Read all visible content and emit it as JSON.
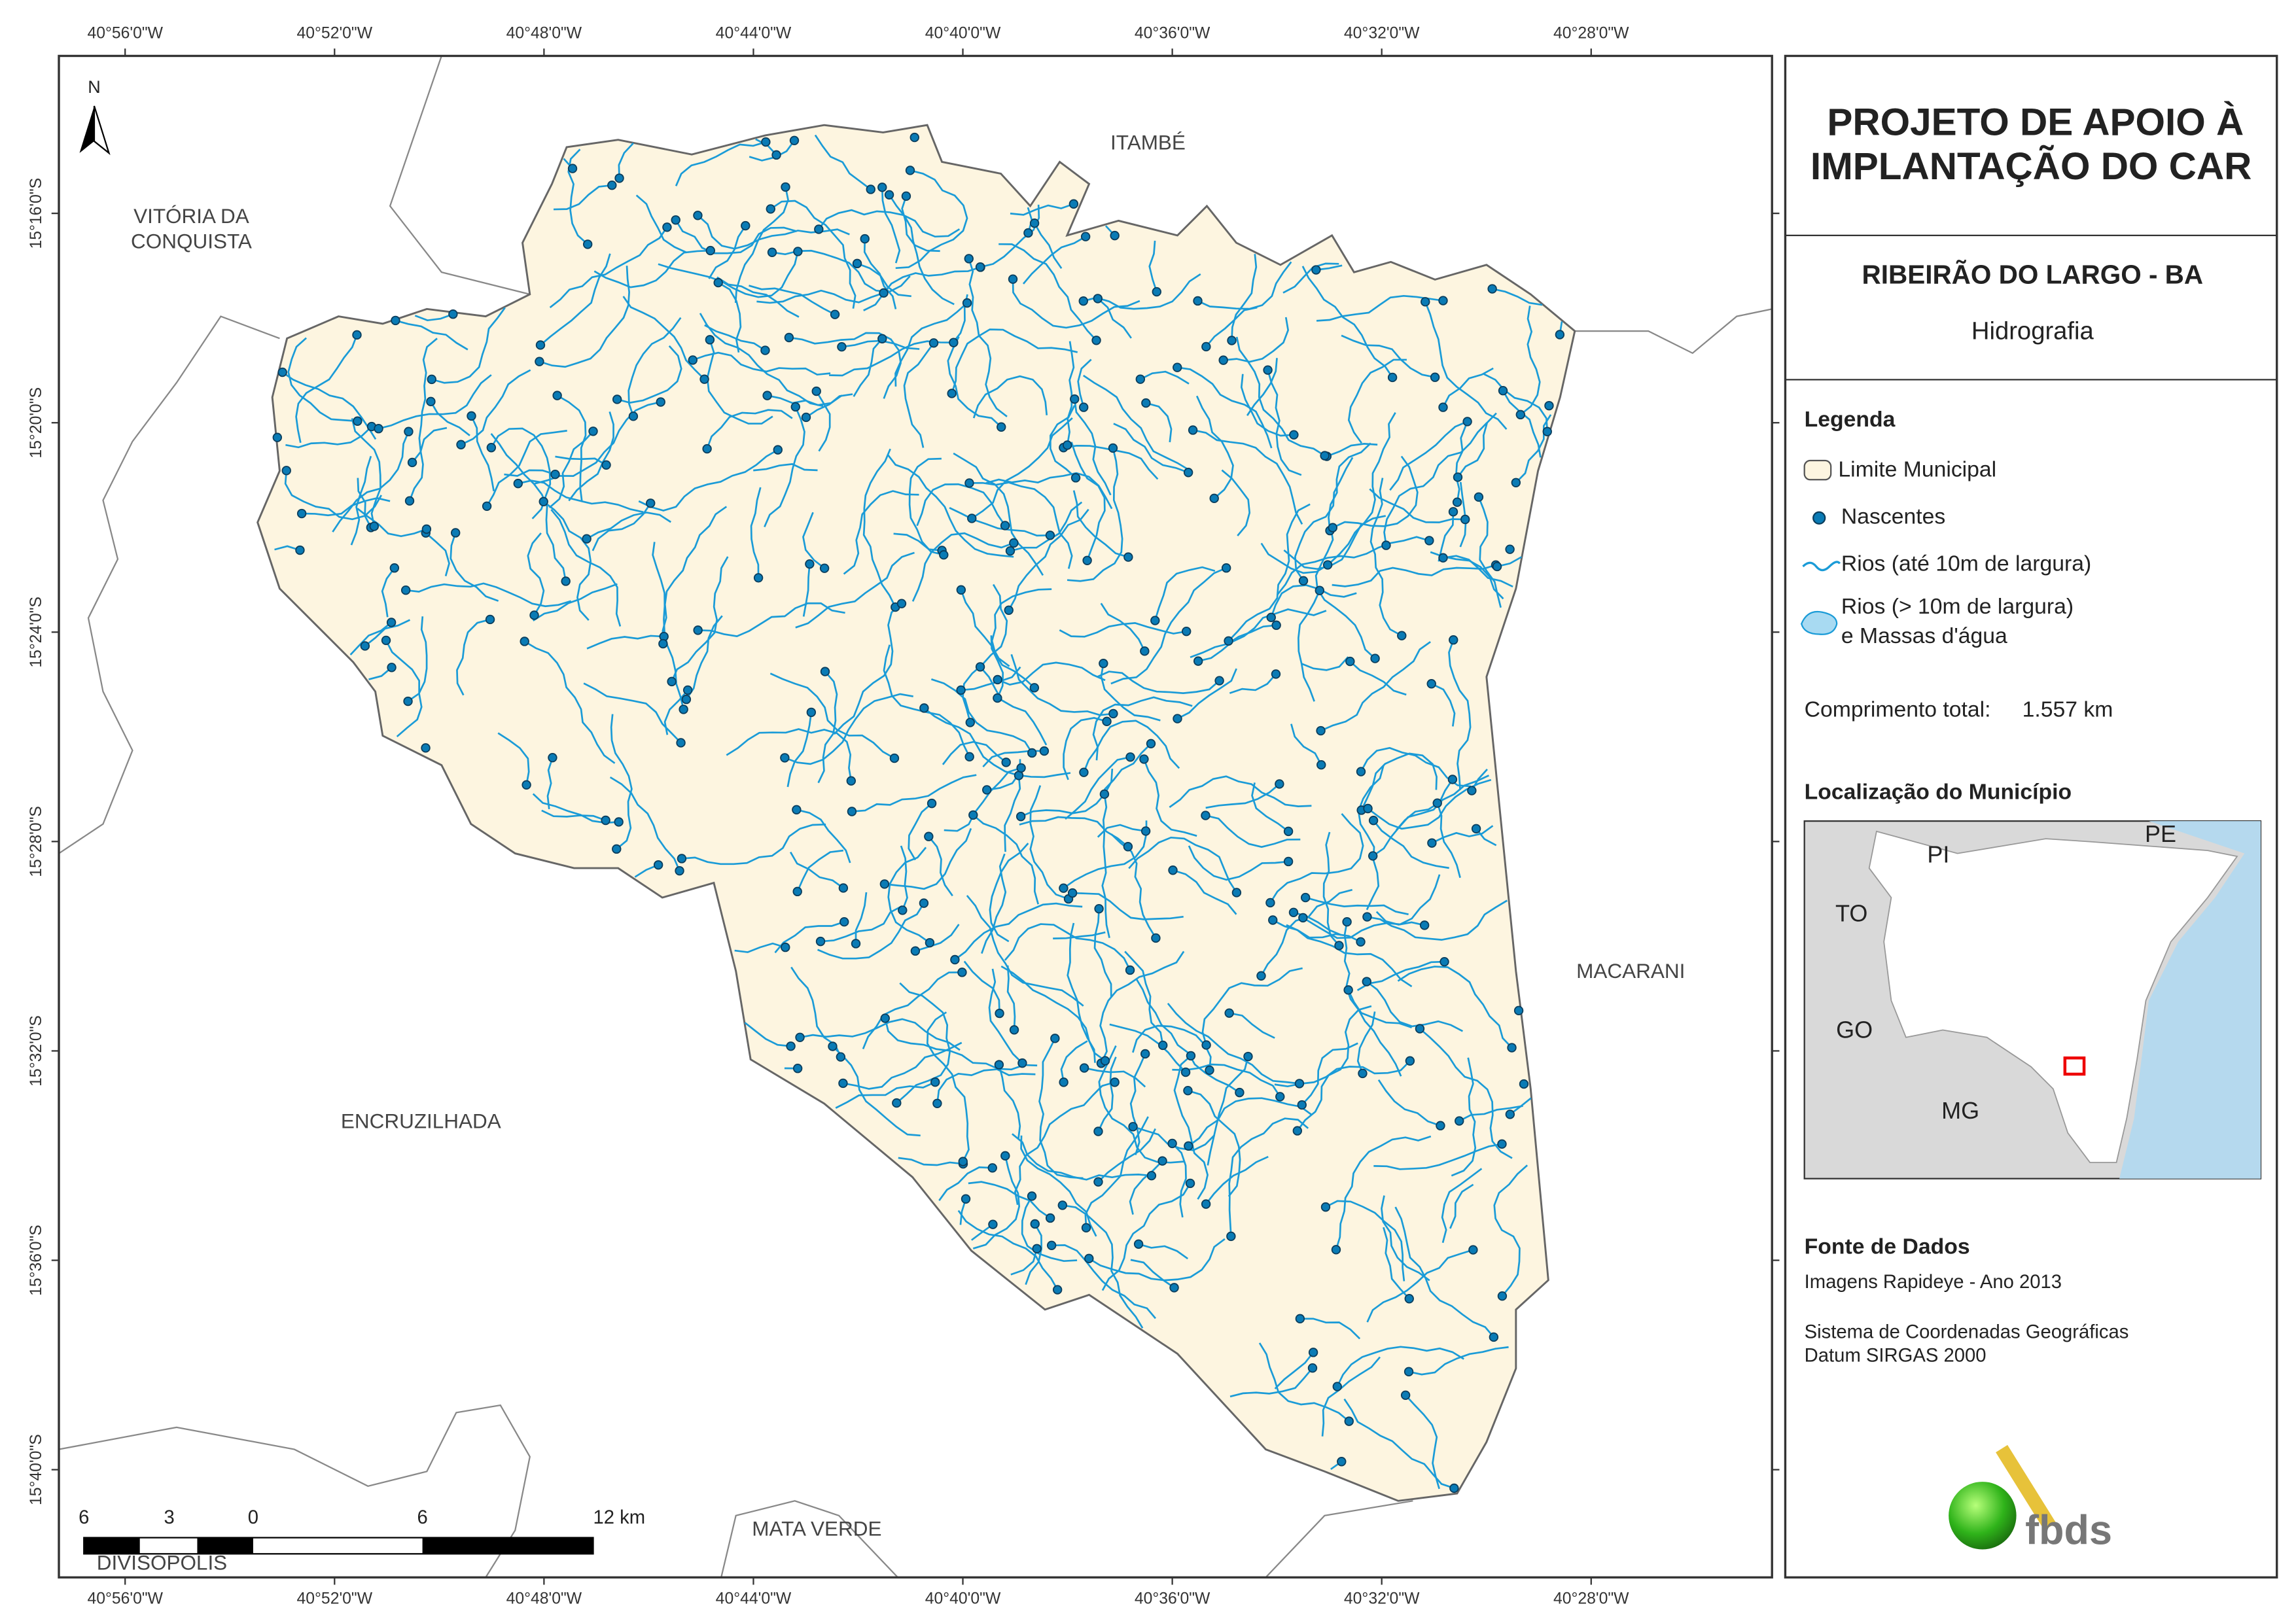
{
  "map": {
    "north": "N",
    "lon_ticks": [
      "40°56'0\"W",
      "40°52'0\"W",
      "40°48'0\"W",
      "40°44'0\"W",
      "40°40'0\"W",
      "40°36'0\"W",
      "40°32'0\"W",
      "40°28'0\"W"
    ],
    "lat_ticks": [
      "15°16'0\"S",
      "15°20'0\"S",
      "15°24'0\"S",
      "15°28'0\"S",
      "15°32'0\"S",
      "15°36'0\"S",
      "15°40'0\"S"
    ],
    "neighbors": {
      "itambe": "ITAMBÉ",
      "vitoria_1": "VITÓRIA DA",
      "vitoria_2": "CONQUISTA",
      "macarani": "MACARANI",
      "encruzilhada": "ENCRUZILHADA",
      "mata_verde": "MATA VERDE",
      "divisopolis": "DIVISÓPOLIS"
    },
    "scale_labels": [
      "6",
      "3",
      "0",
      "6",
      "12 km"
    ]
  },
  "panel": {
    "title_1": "PROJETO DE APOIO À",
    "title_2": "IMPLANTAÇÃO DO CAR",
    "municipality": "RIBEIRÃO DO LARGO - BA",
    "theme": "Hidrografia",
    "legend": {
      "heading": "Legenda",
      "items": [
        "Limite Municipal",
        "Nascentes",
        "Rios (até 10m de largura)",
        "Rios (> 10m de largura)",
        "e Massas d'água"
      ],
      "length_label": "Comprimento total:",
      "length_value": "1.557 km"
    },
    "location": {
      "heading": "Localização do Município",
      "states": [
        "PI",
        "PE",
        "TO",
        "GO",
        "MG"
      ]
    },
    "sources": {
      "heading": "Fonte de Dados",
      "lines": [
        "Imagens Rapideye - Ano 2013",
        "Sistema de Coordenadas Geográficas",
        "Datum SIRGAS 2000"
      ]
    },
    "logo": "fbds"
  }
}
